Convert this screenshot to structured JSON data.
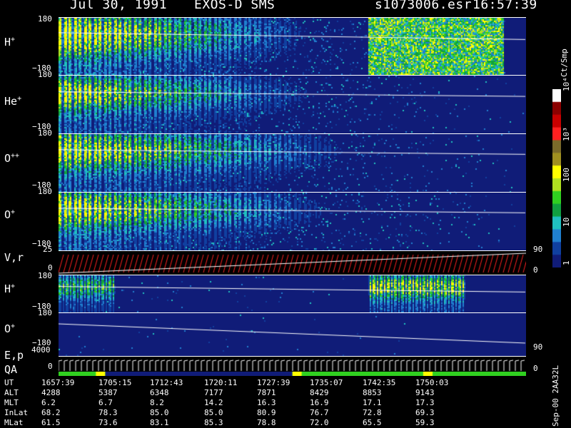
{
  "header": {
    "date": "Jul 30, 1991",
    "instrument": "EXOS-D SMS",
    "file": "s1073006.esr",
    "time": "16:57:39"
  },
  "panels": [
    {
      "label": "H",
      "sup": "+",
      "ymax": "180",
      "ymin": "−180"
    },
    {
      "label": "He",
      "sup": "+",
      "ymax": "180",
      "ymin": "−180"
    },
    {
      "label": "O",
      "sup": "++",
      "ymax": "180",
      "ymin": "−180"
    },
    {
      "label": "O",
      "sup": "+",
      "ymax": "180",
      "ymin": "−180"
    },
    {
      "label": "V,r",
      "sup": "",
      "ymax": "25",
      "ymin": "0",
      "rmax": "90",
      "rmin": "0"
    },
    {
      "label": "H",
      "sup": "+",
      "ymax": "180",
      "ymin": "−180"
    },
    {
      "label": "O",
      "sup": "+",
      "ymax": "180",
      "ymin": "−180",
      "rmax": "90",
      "rmin": ""
    },
    {
      "label": "E,p",
      "sup": "",
      "ymax": "4000",
      "ymin": "0",
      "rmax": "",
      "rmin": "0"
    }
  ],
  "qa_label": "QA",
  "colorbar": {
    "title": "Ct/Smp",
    "labels": [
      "10⁴",
      "10³",
      "100",
      "10",
      "1"
    ],
    "colors": [
      "#ffffff",
      "#8b0000",
      "#c80000",
      "#ff2020",
      "#7a6a2a",
      "#a09020",
      "#ffff00",
      "#b0e020",
      "#30d020",
      "#10a040",
      "#20c0c0",
      "#2080d0",
      "#1040a0",
      "#101c78"
    ]
  },
  "footer_label": "Sep-00 2AA32L",
  "table": {
    "rows": [
      {
        "name": "UT",
        "values": [
          "1657:39",
          "1705:15",
          "1712:43",
          "1720:11",
          "1727:39",
          "1735:07",
          "1742:35",
          "1750:03"
        ]
      },
      {
        "name": "ALT",
        "values": [
          "4288",
          "5387",
          "6348",
          "7177",
          "7871",
          "8429",
          "8853",
          "9143"
        ]
      },
      {
        "name": "MLT",
        "values": [
          "6.2",
          "6.7",
          "8.2",
          "14.2",
          "16.3",
          "16.9",
          "17.1",
          "17.3"
        ]
      },
      {
        "name": "InLat",
        "values": [
          "68.2",
          "78.3",
          "85.0",
          "85.0",
          "80.9",
          "76.7",
          "72.8",
          "69.3"
        ]
      },
      {
        "name": "MLat",
        "values": [
          "61.5",
          "73.6",
          "83.1",
          "85.3",
          "78.8",
          "72.0",
          "65.5",
          "59.3"
        ]
      }
    ]
  },
  "chart_data": {
    "type": "heatmap",
    "title": "Jul 30, 1991 EXOS-D SMS s1073006.esr 16:57:39",
    "x": [
      "1657:39",
      "1705:15",
      "1712:43",
      "1720:11",
      "1727:39",
      "1735:07",
      "1742:35",
      "1750:03"
    ],
    "xlabel": "UT",
    "series": [
      {
        "name": "H+",
        "ylim": [
          -180,
          180
        ]
      },
      {
        "name": "He+",
        "ylim": [
          -180,
          180
        ]
      },
      {
        "name": "O++",
        "ylim": [
          -180,
          180
        ]
      },
      {
        "name": "O+",
        "ylim": [
          -180,
          180
        ]
      },
      {
        "name": "V,r",
        "ylim": [
          0,
          25
        ]
      },
      {
        "name": "H+",
        "ylim": [
          -180,
          180
        ]
      },
      {
        "name": "O+",
        "ylim": [
          -180,
          180
        ]
      },
      {
        "name": "E,p",
        "ylim": [
          0,
          4000
        ]
      }
    ],
    "color_scale": {
      "label": "Ct/Smp",
      "range": [
        1,
        10000
      ],
      "scale": "log"
    }
  }
}
